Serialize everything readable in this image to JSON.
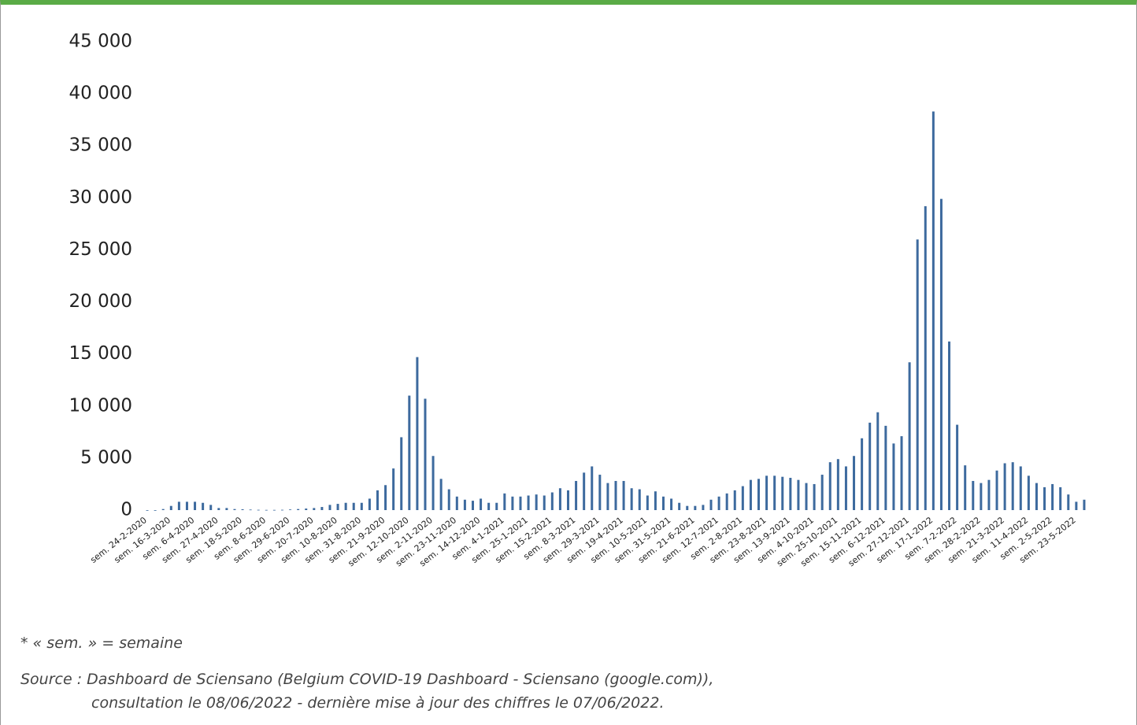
{
  "chart_data": {
    "type": "bar",
    "color": "#3d6a9e",
    "ylim": [
      0,
      45000
    ],
    "yticks": [
      0,
      {
        "value": 5000,
        "label": "5 000"
      },
      {
        "value": 10000,
        "label": "10 000"
      },
      {
        "value": 15000,
        "label": "15 000"
      },
      {
        "value": 20000,
        "label": "20 000"
      },
      {
        "value": 25000,
        "label": "25 000"
      },
      {
        "value": 30000,
        "label": "30 000"
      },
      {
        "value": 35000,
        "label": "35 000"
      },
      {
        "value": 40000,
        "label": "40 000"
      },
      {
        "value": 45000,
        "label": "45 000"
      }
    ],
    "categories": [
      "sem. 24-2-2020",
      null,
      null,
      "sem. 16-3-2020",
      null,
      null,
      "sem. 6-4-2020",
      null,
      null,
      "sem. 27-4-2020",
      null,
      null,
      "sem. 18-5-2020",
      null,
      null,
      "sem. 8-6-2020",
      null,
      null,
      "sem. 29-6-2020",
      null,
      null,
      "sem. 20-7-2020",
      null,
      null,
      "sem. 10-8-2020",
      null,
      null,
      "sem. 31-8-2020",
      null,
      null,
      "sem. 21-9-2020",
      null,
      null,
      "sem. 12-10-2020",
      null,
      null,
      "sem. 2-11-2020",
      null,
      null,
      "sem. 23-11-2020",
      null,
      null,
      "sem. 14-12-2020",
      null,
      null,
      "sem. 4-1-2021",
      null,
      null,
      "sem. 25-1-2021",
      null,
      null,
      "sem. 15-2-2021",
      null,
      null,
      "sem. 8-3-2021",
      null,
      null,
      "sem. 29-3-2021",
      null,
      null,
      "sem. 19-4-2021",
      null,
      null,
      "sem. 10-5-2021",
      null,
      null,
      "sem. 31-5-2021",
      null,
      null,
      "sem. 21-6-2021",
      null,
      null,
      "sem. 12-7-2021",
      null,
      null,
      "sem. 2-8-2021",
      null,
      null,
      "sem. 23-8-2021",
      null,
      null,
      "sem. 13-9-2021",
      null,
      null,
      "sem. 4-10-2021",
      null,
      null,
      "sem. 25-10-2021",
      null,
      null,
      "sem. 15-11-2021",
      null,
      null,
      "sem. 6-12-2021",
      null,
      null,
      "sem. 27-12-2021",
      null,
      null,
      "sem. 17-1-2022",
      null,
      null,
      "sem. 7-2-2022",
      null,
      null,
      "sem. 28-2-2022",
      null,
      null,
      "sem. 21-3-2022",
      null,
      null,
      "sem. 11-4-2022",
      null,
      null,
      "sem. 2-5-2022",
      null,
      null,
      "sem. 23-5-2022",
      null
    ],
    "values": [
      0,
      0,
      100,
      400,
      800,
      800,
      800,
      700,
      500,
      200,
      200,
      100,
      80,
      50,
      30,
      20,
      20,
      30,
      60,
      100,
      150,
      200,
      300,
      500,
      600,
      700,
      700,
      700,
      1100,
      1900,
      2400,
      4000,
      7000,
      11000,
      14700,
      10700,
      5200,
      3000,
      2000,
      1300,
      1000,
      900,
      1100,
      700,
      700,
      1600,
      1300,
      1300,
      1400,
      1500,
      1400,
      1700,
      2100,
      1900,
      2800,
      3600,
      4200,
      3400,
      2600,
      2800,
      2800,
      2100,
      2000,
      1400,
      1800,
      1300,
      1100,
      700,
      400,
      400,
      500,
      1000,
      1300,
      1600,
      1900,
      2300,
      2900,
      3000,
      3300,
      3300,
      3200,
      3100,
      2900,
      2600,
      2500,
      3400,
      4600,
      4900,
      4200,
      5200,
      6900,
      8400,
      9400,
      8100,
      6400,
      7100,
      14200,
      26000,
      29200,
      38300,
      29900,
      16200,
      8200,
      4300,
      2800,
      2600,
      2900,
      3800,
      4500,
      4600,
      4200,
      3300,
      2600,
      2200,
      2500,
      2200,
      1500,
      800,
      1000
    ]
  },
  "notes": [
    "* « sem. » = semaine",
    "Source : Dashboard de Sciensano (Belgium COVID-19 Dashboard - Sciensano (google.com)),",
    "consultation le 08/06/2022 - dernière mise à jour des chiffres le 07/06/2022."
  ]
}
